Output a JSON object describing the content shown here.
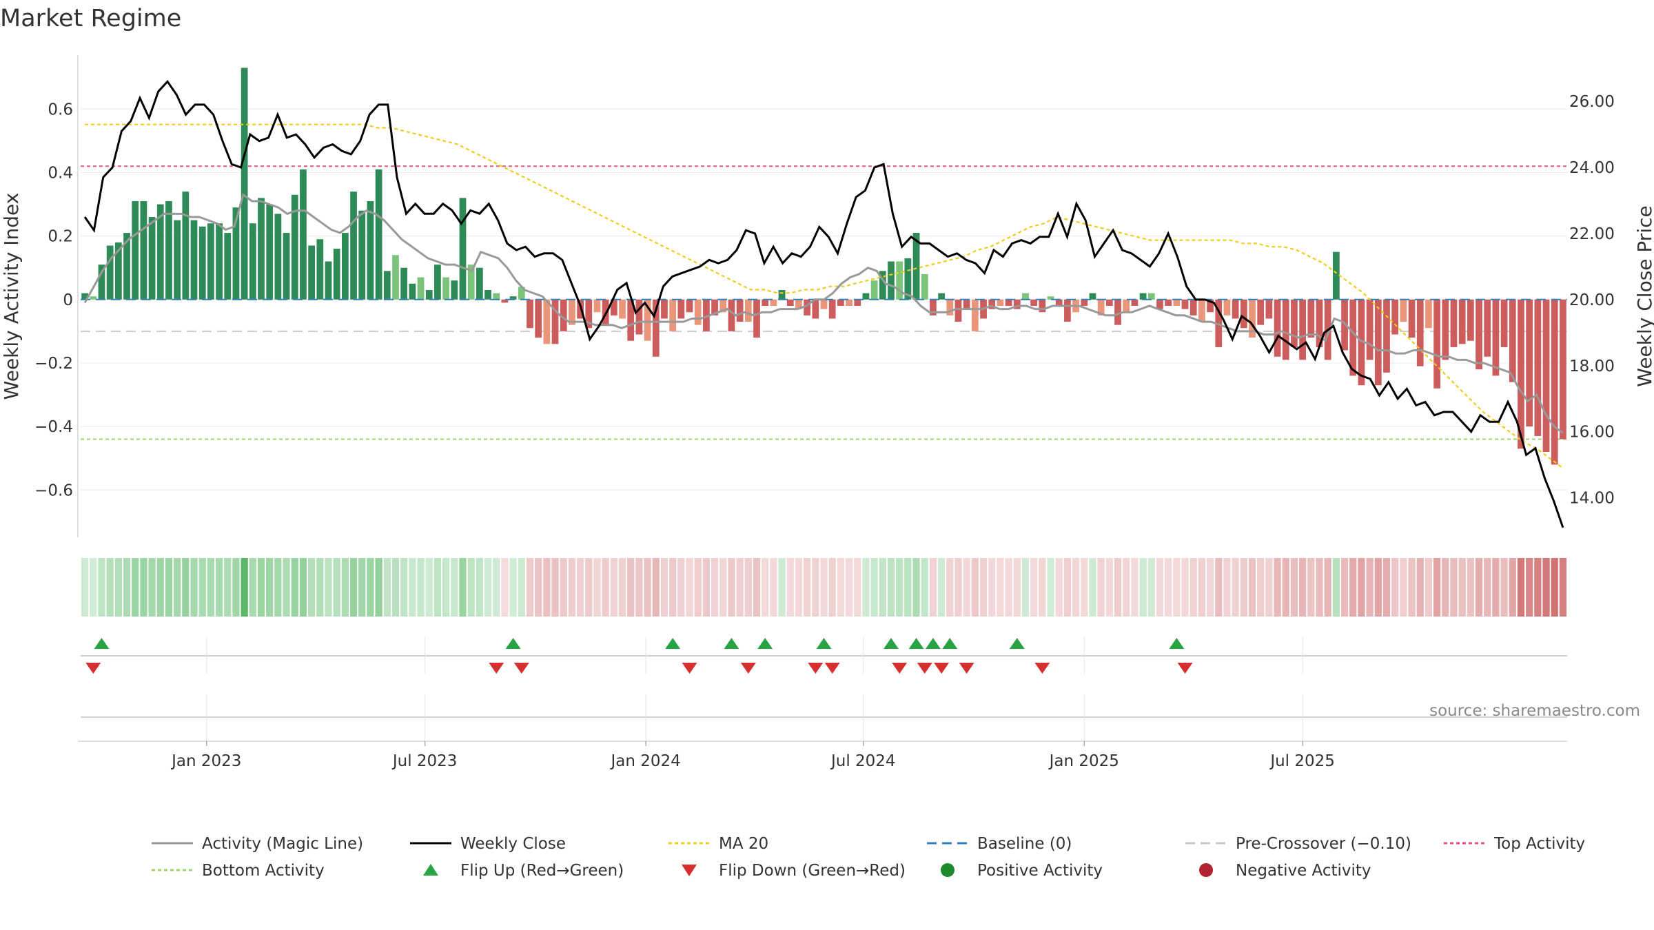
{
  "chart_data": {
    "type": "bar+line",
    "title": "Market Regime",
    "ylabel_left": "Weekly Activity Index",
    "ylabel_right": "Weekly Close Price",
    "source": "source: sharemaestro.com",
    "ylim_left": [
      -0.76,
      0.77
    ],
    "ylim_right": [
      12.7,
      27.4
    ],
    "left_ticks": [
      {
        "value": 0.6,
        "label": "0.6"
      },
      {
        "value": 0.4,
        "label": "0.4"
      },
      {
        "value": 0.2,
        "label": "0.2"
      },
      {
        "value": 0,
        "label": "0"
      },
      {
        "value": -0.2,
        "label": "−0.2"
      },
      {
        "value": -0.4,
        "label": "−0.4"
      },
      {
        "value": -0.6,
        "label": "−0.6"
      }
    ],
    "right_ticks": [
      {
        "value": 26,
        "label": "26.00"
      },
      {
        "value": 24,
        "label": "24.00"
      },
      {
        "value": 22,
        "label": "22.00"
      },
      {
        "value": 20,
        "label": "20.00"
      },
      {
        "value": 18,
        "label": "18.00"
      },
      {
        "value": 16,
        "label": "16.00"
      },
      {
        "value": 14,
        "label": "14.00"
      }
    ],
    "x_ticks": [
      {
        "week": 14.5,
        "label": "Jan 2023"
      },
      {
        "week": 40.5,
        "label": "Jul 2023"
      },
      {
        "week": 66.8,
        "label": "Jan 2024"
      },
      {
        "week": 92.7,
        "label": "Jul 2024"
      },
      {
        "week": 119.0,
        "label": "Jan 2025"
      },
      {
        "week": 145.0,
        "label": "Jul 2025"
      }
    ],
    "reference_lines": {
      "top_activity": 0.42,
      "bottom_activity": -0.44,
      "pre_crossover": -0.1,
      "baseline": 0
    },
    "series": [
      {
        "name": "Activity",
        "values": [
          0.02,
          0.01,
          0.11,
          0.17,
          0.18,
          0.21,
          0.31,
          0.31,
          0.26,
          0.3,
          0.31,
          0.25,
          0.34,
          0.25,
          0.23,
          0.24,
          0.24,
          0.21,
          0.29,
          0.73,
          0.24,
          0.32,
          0.3,
          0.27,
          0.21,
          0.33,
          0.41,
          0.17,
          0.19,
          0.12,
          0.16,
          0.21,
          0.34,
          0.28,
          0.31,
          0.41,
          0.09,
          0.14,
          0.1,
          0.05,
          0.07,
          0.03,
          0.11,
          0.07,
          0.06,
          0.32,
          0.11,
          0.1,
          0.03,
          0.02,
          -0.01,
          0.01,
          0.04,
          -0.09,
          -0.12,
          -0.14,
          -0.14,
          -0.1,
          -0.08,
          -0.06,
          -0.09,
          -0.04,
          -0.08,
          -0.05,
          -0.06,
          -0.13,
          -0.11,
          -0.13,
          -0.18,
          -0.06,
          -0.1,
          -0.06,
          -0.04,
          -0.08,
          -0.1,
          -0.05,
          -0.04,
          -0.1,
          -0.07,
          -0.07,
          -0.12,
          -0.02,
          -0.02,
          0.03,
          -0.02,
          -0.03,
          -0.05,
          -0.06,
          -0.03,
          -0.06,
          -0.02,
          -0.02,
          -0.02,
          0.02,
          0.06,
          0.09,
          0.12,
          0.12,
          0.13,
          0.21,
          0.08,
          -0.05,
          0.02,
          -0.05,
          -0.07,
          -0.03,
          -0.1,
          -0.06,
          -0.03,
          -0.02,
          -0.02,
          -0.03,
          0.02,
          -0.02,
          -0.04,
          0.01,
          -0.02,
          -0.07,
          -0.04,
          -0.02,
          0.02,
          -0.05,
          -0.02,
          -0.08,
          -0.04,
          -0.02,
          0.02,
          0.02,
          -0.03,
          -0.02,
          -0.02,
          -0.03,
          -0.05,
          -0.07,
          -0.04,
          -0.15,
          -0.05,
          -0.06,
          -0.09,
          -0.12,
          -0.08,
          -0.06,
          -0.18,
          -0.19,
          -0.15,
          -0.19,
          -0.12,
          -0.15,
          -0.19,
          0.15,
          -0.16,
          -0.24,
          -0.27,
          -0.19,
          -0.27,
          -0.23,
          -0.11,
          -0.07,
          -0.12,
          -0.21,
          -0.09,
          -0.28,
          -0.19,
          -0.15,
          -0.14,
          -0.13,
          -0.22,
          -0.18,
          -0.24,
          -0.15,
          -0.26,
          -0.47,
          -0.4,
          -0.43,
          -0.48,
          -0.52,
          -0.44
        ]
      },
      {
        "name": "Weekly Close",
        "values": [
          22.5,
          22.1,
          23.7,
          24.0,
          25.1,
          25.4,
          26.1,
          25.5,
          26.3,
          26.6,
          26.2,
          25.6,
          25.9,
          25.9,
          25.6,
          24.8,
          24.1,
          24.0,
          25.0,
          24.8,
          24.9,
          25.6,
          24.9,
          25.0,
          24.7,
          24.3,
          24.6,
          24.7,
          24.5,
          24.4,
          24.8,
          25.6,
          25.9,
          25.9,
          23.7,
          22.6,
          22.9,
          22.6,
          22.6,
          22.9,
          22.7,
          22.3,
          22.7,
          22.6,
          22.9,
          22.4,
          21.7,
          21.5,
          21.6,
          21.3,
          21.4,
          21.4,
          21.2,
          20.5,
          19.8,
          18.8,
          19.2,
          19.7,
          20.3,
          20.5,
          19.6,
          19.9,
          19.5,
          20.4,
          20.7,
          20.8,
          20.9,
          21.0,
          21.2,
          21.1,
          21.2,
          21.5,
          22.1,
          22.0,
          21.1,
          21.6,
          21.1,
          21.4,
          21.3,
          21.6,
          22.2,
          21.9,
          21.4,
          22.3,
          23.1,
          23.3,
          24.0,
          24.1,
          22.6,
          21.6,
          21.9,
          21.7,
          21.7,
          21.5,
          21.3,
          21.4,
          21.2,
          21.1,
          20.8,
          21.5,
          21.3,
          21.7,
          21.8,
          21.7,
          21.9,
          21.9,
          22.6,
          21.9,
          22.9,
          22.4,
          21.3,
          21.7,
          22.1,
          21.5,
          21.4,
          21.2,
          21.0,
          21.4,
          22.0,
          21.3,
          20.4,
          20.0,
          20.0,
          19.9,
          19.4,
          18.8,
          19.5,
          19.3,
          18.9,
          18.4,
          18.9,
          18.7,
          18.5,
          18.7,
          18.2,
          19.0,
          19.2,
          18.4,
          17.9,
          17.7,
          17.6,
          17.1,
          17.5,
          17.0,
          17.3,
          16.8,
          16.9,
          16.5,
          16.6,
          16.6,
          16.3,
          16.0,
          16.5,
          16.3,
          16.3,
          16.9,
          16.3,
          15.3,
          15.5,
          14.6,
          13.9,
          13.1
        ]
      },
      {
        "name": "MA 20",
        "values": [
          25.3,
          25.3,
          25.3,
          25.3,
          25.3,
          25.3,
          25.3,
          25.3,
          25.3,
          25.3,
          25.3,
          25.3,
          25.3,
          25.3,
          25.3,
          25.3,
          25.3,
          25.3,
          25.3,
          25.3,
          25.3,
          25.3,
          25.2,
          25.2,
          25.1,
          25.0,
          24.9,
          24.8,
          24.7,
          24.5,
          24.3,
          24.1,
          23.9,
          23.7,
          23.5,
          23.3,
          23.1,
          22.9,
          22.7,
          22.5,
          22.3,
          22.1,
          21.9,
          21.7,
          21.5,
          21.3,
          21.1,
          20.9,
          20.7,
          20.5,
          20.3,
          20.3,
          20.2,
          20.2,
          20.3,
          20.3,
          20.4,
          20.4,
          20.5,
          20.6,
          20.7,
          20.8,
          20.9,
          21.0,
          21.1,
          21.2,
          21.3,
          21.5,
          21.6,
          21.8,
          22.0,
          22.2,
          22.3,
          22.5,
          22.4,
          22.3,
          22.2,
          22.1,
          22.0,
          21.9,
          21.8,
          21.8,
          21.8,
          21.8,
          21.8,
          21.8,
          21.8,
          21.7,
          21.7,
          21.6,
          21.6,
          21.5,
          21.3,
          21.1,
          20.8,
          20.5,
          20.2,
          19.8,
          19.4,
          19.0,
          18.6,
          18.2,
          17.8,
          17.4,
          17.0,
          16.6,
          16.3,
          16.0,
          15.7,
          15.5,
          15.2,
          14.9
        ]
      },
      {
        "name": "Activity (Magic Line)",
        "values": [
          -0.01,
          0.04,
          0.09,
          0.13,
          0.16,
          0.19,
          0.21,
          0.23,
          0.25,
          0.27,
          0.27,
          0.27,
          0.26,
          0.26,
          0.25,
          0.24,
          0.22,
          0.23,
          0.33,
          0.31,
          0.31,
          0.3,
          0.29,
          0.27,
          0.28,
          0.28,
          0.26,
          0.24,
          0.22,
          0.21,
          0.23,
          0.26,
          0.28,
          0.27,
          0.25,
          0.22,
          0.19,
          0.17,
          0.15,
          0.13,
          0.12,
          0.11,
          0.11,
          0.1,
          0.09,
          0.15,
          0.14,
          0.13,
          0.1,
          0.06,
          0.03,
          0.02,
          0.01,
          -0.02,
          -0.05,
          -0.07,
          -0.07,
          -0.07,
          -0.08,
          -0.08,
          -0.08,
          -0.09,
          -0.08,
          -0.07,
          -0.07,
          -0.07,
          -0.07,
          -0.07,
          -0.07,
          -0.06,
          -0.06,
          -0.05,
          -0.04,
          -0.03,
          -0.05,
          -0.04,
          -0.05,
          -0.04,
          -0.04,
          -0.03,
          -0.03,
          -0.03,
          -0.02,
          0.0,
          0.0,
          0.02,
          0.05,
          0.07,
          0.08,
          0.1,
          0.09,
          0.05,
          0.04,
          0.02,
          0.01,
          -0.02,
          -0.04,
          -0.04,
          -0.04,
          -0.03,
          -0.03,
          -0.03,
          -0.03,
          -0.02,
          -0.03,
          -0.03,
          -0.02,
          -0.02,
          -0.03,
          -0.03,
          -0.02,
          -0.02,
          -0.02,
          -0.02,
          -0.03,
          -0.04,
          -0.05,
          -0.05,
          -0.04,
          -0.04,
          -0.03,
          -0.02,
          -0.03,
          -0.04,
          -0.05,
          -0.05,
          -0.06,
          -0.07,
          -0.07,
          -0.08,
          -0.09,
          -0.1,
          -0.1,
          -0.1,
          -0.11,
          -0.11,
          -0.1,
          -0.11,
          -0.12,
          -0.11,
          -0.11,
          -0.13,
          -0.06,
          -0.07,
          -0.1,
          -0.13,
          -0.14,
          -0.16,
          -0.16,
          -0.17,
          -0.17,
          -0.16,
          -0.16,
          -0.17,
          -0.18,
          -0.18,
          -0.19,
          -0.19,
          -0.2,
          -0.2,
          -0.21,
          -0.22,
          -0.23,
          -0.28,
          -0.32,
          -0.3,
          -0.36,
          -0.4,
          -0.42
        ]
      }
    ],
    "flip_up_weeks": [
      2,
      51,
      70,
      77,
      81,
      88,
      96,
      99,
      101,
      103,
      111,
      130
    ],
    "flip_down_weeks": [
      1,
      49,
      52,
      72,
      79,
      87,
      89,
      97,
      100,
      102,
      105,
      114,
      131
    ],
    "legend": [
      {
        "label": "Activity (Magic Line)",
        "type": "line",
        "color": "#999999",
        "dash": ""
      },
      {
        "label": "Weekly Close",
        "type": "line",
        "color": "#000000",
        "dash": ""
      },
      {
        "label": "MA 20",
        "type": "line",
        "color": "#f0cc1c",
        "dash": "5,4"
      },
      {
        "label": "Baseline (0)",
        "type": "line",
        "color": "#2f7fb8",
        "dash": "14,8"
      },
      {
        "label": "Pre-Crossover (−0.10)",
        "type": "line",
        "color": "#c9c9c9",
        "dash": "14,8"
      },
      {
        "label": "Top Activity",
        "type": "line",
        "color": "#e0577a",
        "dash": "5,4"
      },
      {
        "label": "Bottom Activity",
        "type": "line",
        "color": "#9fd46a",
        "dash": "5,4"
      },
      {
        "label": "Flip Up (Red→Green)",
        "type": "triangle-up",
        "color": "#27a343",
        "dash": ""
      },
      {
        "label": "Flip Down (Green→Red)",
        "type": "triangle-down",
        "color": "#d62f2f",
        "dash": ""
      },
      {
        "label": "Positive Activity",
        "type": "dot",
        "color": "#1e8a2f",
        "dash": ""
      },
      {
        "label": "Negative Activity",
        "type": "dot",
        "color": "#b22231",
        "dash": ""
      }
    ]
  },
  "colors": {
    "pos_strong": "#2e8b57",
    "pos_light": "#7cc47a",
    "neg_strong": "#cd5c5c",
    "neg_light": "#e9967a",
    "close_line": "#000000",
    "magic_line": "#999999",
    "ma_line": "#f0cc1c"
  }
}
